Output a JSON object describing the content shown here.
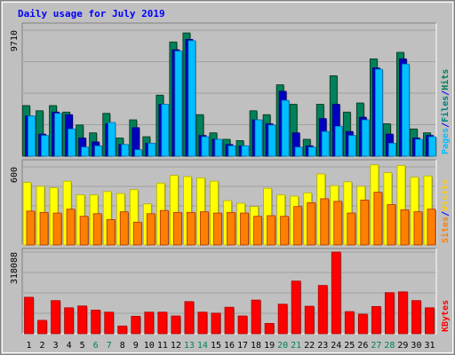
{
  "chart_data": {
    "type": "bar",
    "title": "Daily usage for July 2019",
    "categories": [
      "1",
      "2",
      "3",
      "4",
      "5",
      "6",
      "7",
      "8",
      "9",
      "10",
      "11",
      "12",
      "13",
      "14",
      "15",
      "16",
      "17",
      "18",
      "19",
      "20",
      "21",
      "22",
      "23",
      "24",
      "25",
      "26",
      "27",
      "28",
      "29",
      "30",
      "31"
    ],
    "weekend_days": [
      "6",
      "7",
      "13",
      "14",
      "20",
      "21",
      "27",
      "28"
    ],
    "panels": [
      {
        "id": "hits-files-pages",
        "ymax_label": "9710",
        "ylim": [
          0,
          9710
        ],
        "legend": [
          "Pages",
          "/",
          "Files",
          "/",
          "Hits"
        ],
        "series": [
          {
            "name": "Hits",
            "color": "#00805c",
            "values": [
              3900,
              3500,
              3900,
              3400,
              2400,
              1800,
              3300,
              1400,
              2800,
              1500,
              4700,
              8800,
              9500,
              3200,
              1800,
              1300,
              1200,
              3500,
              3200,
              5500,
              4000,
              1300,
              4000,
              6200,
              3400,
              4100,
              7500,
              2500,
              8000,
              2100,
              1800
            ]
          },
          {
            "name": "Files",
            "color": "#0000c0",
            "values": [
              3100,
              1700,
              3400,
              3200,
              1400,
              1100,
              2500,
              900,
              2200,
              1000,
              4000,
              8200,
              9000,
              1600,
              1300,
              900,
              800,
              2800,
              2500,
              5000,
              1800,
              800,
              2900,
              4000,
              1900,
              3000,
              6800,
              1700,
              7500,
              1400,
              1600
            ]
          },
          {
            "name": "Pages",
            "color": "#00bfff",
            "values": [
              3100,
              1600,
              3300,
              2100,
              700,
              800,
              2600,
              900,
              500,
              1000,
              4000,
              8100,
              8900,
              1500,
              1300,
              800,
              800,
              2800,
              2400,
              4300,
              700,
              700,
              1900,
              2300,
              1600,
              2800,
              6700,
              1000,
              7100,
              1300,
              1500
            ]
          }
        ]
      },
      {
        "id": "visits-sites",
        "ymax_label": "600",
        "ylim": [
          0,
          600
        ],
        "legend": [
          "Sites",
          "/",
          "Visits"
        ],
        "series": [
          {
            "name": "Visits",
            "color": "#ffff00",
            "values": [
              480,
              450,
              440,
              490,
              385,
              385,
              410,
              395,
              425,
              315,
              475,
              535,
              525,
              515,
              490,
              340,
              320,
              295,
              435,
              385,
              375,
              400,
              545,
              455,
              485,
              450,
              615,
              555,
              610,
              520,
              530
            ]
          },
          {
            "name": "Sites",
            "color": "#ff8000",
            "values": [
              260,
              250,
              245,
              275,
              220,
              240,
              195,
              255,
              175,
              240,
              265,
              250,
              250,
              255,
              245,
              250,
              245,
              220,
              225,
              220,
              295,
              325,
              355,
              335,
              245,
              345,
              405,
              310,
              270,
              255,
              275
            ]
          }
        ]
      },
      {
        "id": "kbytes",
        "ymax_label": "318088",
        "ylim": [
          0,
          318088
        ],
        "legend": [
          "KBytes"
        ],
        "series": [
          {
            "name": "KBytes",
            "color": "#ff0000",
            "values": [
              142000,
              52000,
              129000,
              101000,
              108000,
              92000,
              84000,
              30000,
              68000,
              84000,
              84000,
              69000,
              125000,
              84000,
              80000,
              103000,
              69000,
              131000,
              40000,
              115000,
              205000,
              107000,
              188000,
              318000,
              86000,
              76000,
              106000,
              160000,
              163000,
              129000,
              101000
            ]
          }
        ]
      }
    ]
  }
}
